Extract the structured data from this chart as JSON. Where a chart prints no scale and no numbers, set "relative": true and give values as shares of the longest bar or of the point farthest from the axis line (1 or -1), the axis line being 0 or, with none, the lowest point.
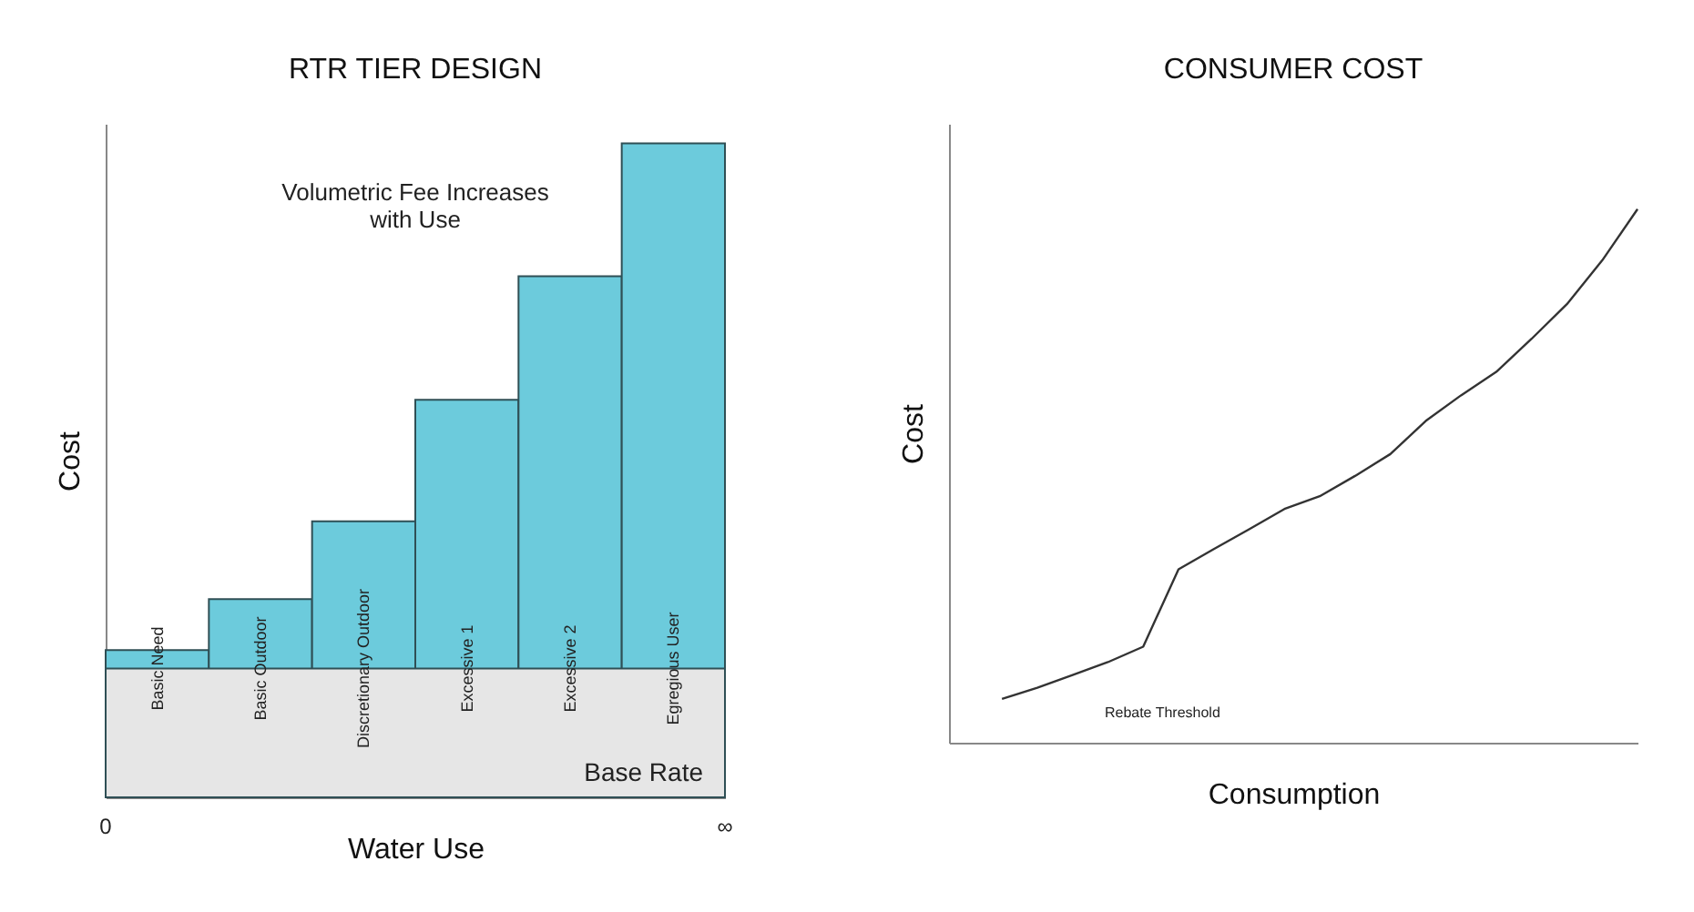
{
  "chart_data": [
    {
      "type": "bar",
      "title": "RTR TIER DESIGN",
      "xlabel": "Water Use",
      "ylabel": "Cost",
      "relative": true,
      "grid": false,
      "categories": [
        "Basic Need",
        "Basic Outdoor",
        "Discretionary Outdoor",
        "Excessive 1",
        "Excessive 2",
        "Egregious User"
      ],
      "color": "#6ccbdc",
      "values": [
        0.225,
        0.303,
        0.422,
        0.608,
        0.797,
        1.0
      ],
      "bands": [
        {
          "axis": "y",
          "from": 0,
          "to": 0.197,
          "label": "Base Rate",
          "color": "#e6e6e6"
        }
      ],
      "annotations": [
        "Volumetric Fee Increases with Use",
        "0",
        "∞"
      ]
    },
    {
      "type": "line",
      "title": "CONSUMER COST",
      "xlabel": "Consumption",
      "ylabel": "Cost",
      "relative": true,
      "grid": false,
      "categories": [
        null,
        null,
        null,
        null,
        null,
        null,
        null,
        null,
        null,
        null,
        null,
        null,
        null,
        null,
        null,
        null,
        null,
        null,
        null
      ],
      "series": [
        {
          "color": "#333333",
          "values": [
            0.082,
            0.103,
            0.127,
            0.151,
            0.18,
            0.325,
            0.363,
            0.4,
            0.438,
            0.462,
            0.5,
            0.541,
            0.603,
            0.651,
            0.695,
            0.757,
            0.822,
            0.904,
            1.0
          ]
        }
      ],
      "annotations": [
        "Rebate Threshold"
      ]
    }
  ]
}
